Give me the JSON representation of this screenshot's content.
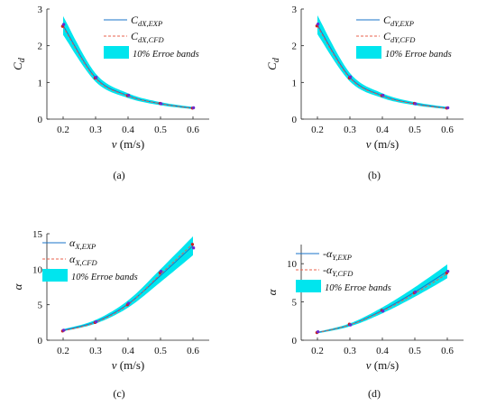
{
  "chart_data": [
    {
      "type": "line",
      "panel_label": "(a)",
      "xlabel_var": "v",
      "xlabel_unit": " (m/s)",
      "ylabel": "C",
      "ylabel_sub": "d",
      "xlim": [
        0.15,
        0.65
      ],
      "ylim": [
        0,
        3
      ],
      "xticks": [
        0.2,
        0.3,
        0.4,
        0.5,
        0.6
      ],
      "xtick_labels": [
        "0.2",
        "0.3",
        "0.4",
        "0.5",
        "0.6"
      ],
      "yticks": [
        0,
        1,
        2,
        3
      ],
      "ytick_labels": [
        "0",
        "1",
        "2",
        "3"
      ],
      "x": [
        0.2,
        0.3,
        0.4,
        0.5,
        0.6
      ],
      "series": [
        {
          "name": "C",
          "name_sub": "dX,EXP",
          "style": "solid",
          "color": "#1a73c8",
          "values": [
            2.55,
            1.13,
            0.64,
            0.42,
            0.3
          ]
        },
        {
          "name": "C",
          "name_sub": "dX,CFD",
          "style": "dashed",
          "color": "#e8604c",
          "values": [
            2.52,
            1.11,
            0.63,
            0.42,
            0.29
          ]
        },
        {
          "name": "10% Erroe bands",
          "style": "band",
          "color": "#00e5ee",
          "band_fraction": 0.1
        }
      ],
      "markers": [
        {
          "color": "#cc2222",
          "values": [
            2.53,
            1.12,
            0.64,
            0.43,
            0.3
          ]
        },
        {
          "color": "#6a2bd0",
          "values": [
            2.58,
            1.14,
            0.65,
            0.42,
            0.31
          ]
        }
      ],
      "legend_position": "top-right"
    },
    {
      "type": "line",
      "panel_label": "(b)",
      "xlabel_var": "v",
      "xlabel_unit": " (m/s)",
      "ylabel": "C",
      "ylabel_sub": "d",
      "xlim": [
        0.15,
        0.65
      ],
      "ylim": [
        0,
        3
      ],
      "xticks": [
        0.2,
        0.3,
        0.4,
        0.5,
        0.6
      ],
      "xtick_labels": [
        "0.2",
        "0.3",
        "0.4",
        "0.5",
        "0.6"
      ],
      "yticks": [
        0,
        1,
        2,
        3
      ],
      "ytick_labels": [
        "0",
        "1",
        "2",
        "3"
      ],
      "x": [
        0.2,
        0.3,
        0.4,
        0.5,
        0.6
      ],
      "series": [
        {
          "name": "C",
          "name_sub": "dY,EXP",
          "style": "solid",
          "color": "#1a73c8",
          "values": [
            2.57,
            1.14,
            0.64,
            0.42,
            0.3
          ]
        },
        {
          "name": "C",
          "name_sub": "dY,CFD",
          "style": "dashed",
          "color": "#e8604c",
          "values": [
            2.53,
            1.12,
            0.63,
            0.41,
            0.29
          ]
        },
        {
          "name": "10% Erroe bands",
          "style": "band",
          "color": "#00e5ee",
          "band_fraction": 0.1
        }
      ],
      "markers": [
        {
          "color": "#cc2222",
          "values": [
            2.54,
            1.12,
            0.64,
            0.43,
            0.3
          ]
        },
        {
          "color": "#6a2bd0",
          "values": [
            2.59,
            1.15,
            0.65,
            0.42,
            0.31
          ]
        }
      ],
      "legend_position": "top-right"
    },
    {
      "type": "line",
      "panel_label": "(c)",
      "xlabel_var": "v",
      "xlabel_unit": " (m/s)",
      "ylabel": "α",
      "ylabel_sub": "",
      "xlim": [
        0.15,
        0.65
      ],
      "ylim": [
        0,
        15
      ],
      "xticks": [
        0.2,
        0.3,
        0.4,
        0.5,
        0.6
      ],
      "xtick_labels": [
        "0.2",
        "0.3",
        "0.4",
        "0.5",
        "0.6"
      ],
      "yticks": [
        0,
        5,
        10,
        15
      ],
      "ytick_labels": [
        "0",
        "5",
        "10",
        "15"
      ],
      "x": [
        0.2,
        0.3,
        0.4,
        0.5,
        0.6
      ],
      "series": [
        {
          "name": "α",
          "name_sub": "X,EXP",
          "style": "solid",
          "color": "#1a73c8",
          "values": [
            1.4,
            2.6,
            5.1,
            9.1,
            13.3
          ]
        },
        {
          "name": "α",
          "name_sub": "X,CFD",
          "style": "dashed",
          "color": "#e8604c",
          "values": [
            1.3,
            2.5,
            5.0,
            9.3,
            13.6
          ]
        },
        {
          "name": "10% Erroe bands",
          "style": "band",
          "color": "#00e5ee",
          "band_fraction": 0.1
        }
      ],
      "markers": [
        {
          "color": "#cc2222",
          "values": [
            1.3,
            2.5,
            5.0,
            9.5,
            13.5
          ]
        },
        {
          "color": "#6a2bd0",
          "values": [
            1.4,
            2.6,
            5.2,
            9.7,
            13.0
          ]
        }
      ],
      "legend_position": "top-left"
    },
    {
      "type": "line",
      "panel_label": "(d)",
      "xlabel_var": "v",
      "xlabel_unit": " (m/s)",
      "ylabel": "α",
      "ylabel_sub": "",
      "xlim": [
        0.15,
        0.65
      ],
      "ylim": [
        0,
        12.5
      ],
      "xticks": [
        0.2,
        0.3,
        0.4,
        0.5,
        0.6
      ],
      "xtick_labels": [
        "0.2",
        "0.3",
        "0.4",
        "0.5",
        "0.6"
      ],
      "yticks": [
        0,
        5,
        10
      ],
      "ytick_labels": [
        "0",
        "5",
        "10"
      ],
      "x": [
        0.2,
        0.3,
        0.4,
        0.5,
        0.6
      ],
      "series": [
        {
          "name": "-α",
          "name_sub": "Y,EXP",
          "style": "solid",
          "color": "#1a73c8",
          "values": [
            1.0,
            2.0,
            3.9,
            6.3,
            9.0
          ]
        },
        {
          "name": "-α",
          "name_sub": "Y,CFD",
          "style": "dashed",
          "color": "#e8604c",
          "values": [
            1.0,
            2.0,
            3.8,
            6.1,
            8.7
          ]
        },
        {
          "name": "10% Erroe bands",
          "style": "band",
          "color": "#00e5ee",
          "band_fraction": 0.1
        }
      ],
      "markers": [
        {
          "color": "#cc2222",
          "values": [
            1.0,
            2.1,
            3.9,
            6.2,
            8.8
          ]
        },
        {
          "color": "#6a2bd0",
          "values": [
            1.1,
            2.0,
            3.8,
            6.3,
            9.0
          ]
        }
      ],
      "legend_position": "top-left"
    }
  ]
}
